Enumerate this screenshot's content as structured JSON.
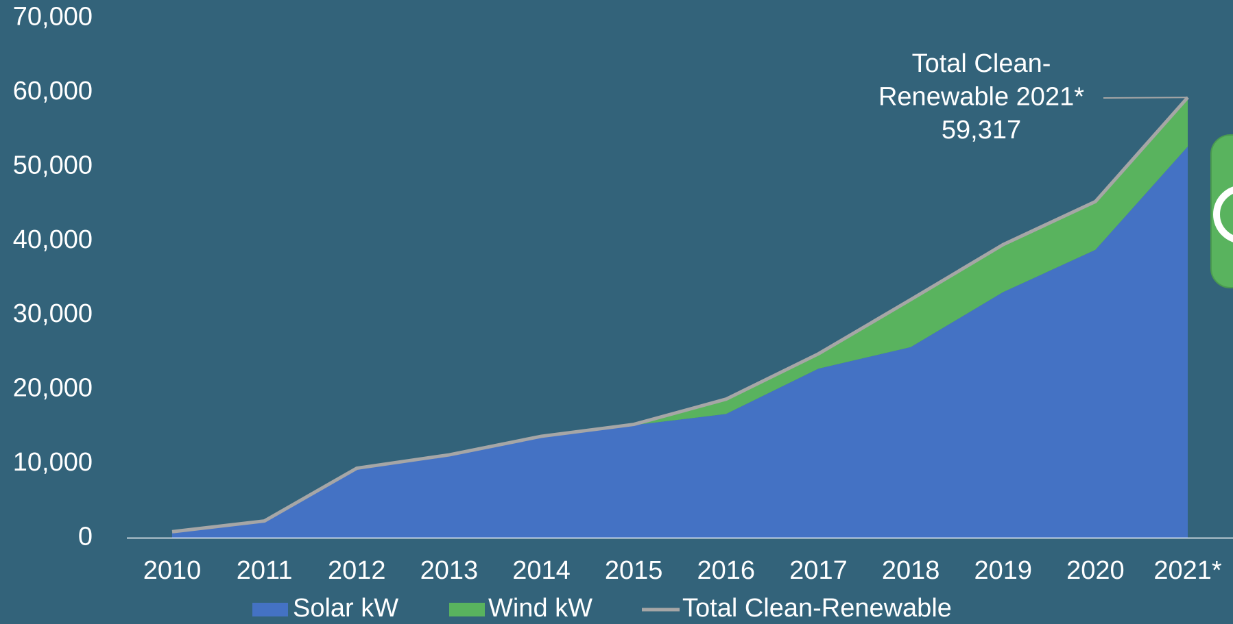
{
  "chart_data": {
    "type": "stacked-area",
    "categories": [
      "2010",
      "2011",
      "2012",
      "2013",
      "2014",
      "2015",
      "2016",
      "2017",
      "2018",
      "2019",
      "2020",
      "2021*"
    ],
    "series": [
      {
        "name": "Solar kW",
        "color": "#4472c4",
        "kind": "area",
        "values": [
          850,
          2300,
          9400,
          11200,
          13700,
          15200,
          16700,
          22800,
          25700,
          33100,
          38800,
          52700
        ]
      },
      {
        "name": "Wind kW",
        "color": "#59b35e",
        "kind": "area",
        "values": [
          0,
          0,
          0,
          0,
          0,
          100,
          2000,
          2000,
          6400,
          6400,
          6500,
          6617
        ]
      },
      {
        "name": "Total Clean-Renewable",
        "color": "#a6a6a6",
        "kind": "line",
        "values": [
          850,
          2300,
          9400,
          11200,
          13700,
          15300,
          18700,
          24800,
          32100,
          39500,
          45300,
          59317
        ]
      }
    ],
    "ylim": [
      0,
      70000
    ],
    "yticks": [
      0,
      {
        "value": 10000,
        "label": "10,000"
      },
      {
        "value": 20000,
        "label": "20,000"
      },
      {
        "value": 30000,
        "label": "30,000"
      },
      {
        "value": 40000,
        "label": "40,000"
      },
      {
        "value": 50000,
        "label": "50,000"
      },
      {
        "value": 60000,
        "label": "60,000"
      },
      {
        "value": 70000,
        "label": "70,000"
      }
    ],
    "annotation": {
      "text": [
        "Total Clean-",
        "Renewable 2021*",
        "59,317"
      ]
    },
    "legend": "bottom"
  }
}
